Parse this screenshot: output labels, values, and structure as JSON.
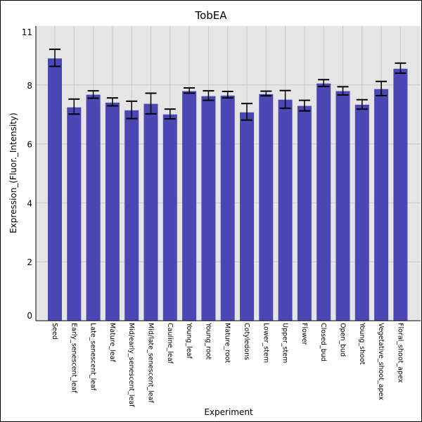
{
  "chart_data": {
    "type": "bar",
    "title": "TobEA",
    "xlabel": "Experiment",
    "ylabel": "Expression_(Fluor._Intensity)",
    "ylim": [
      0,
      10
    ],
    "yticks": [
      0,
      2,
      4,
      6,
      8
    ],
    "ytick_top_label": "11",
    "grid": true,
    "bar_color": "#4b47b5",
    "background_color": "#e5e5e5",
    "categories": [
      "Seed",
      "Early_senescent_leaf",
      "Late_senescent_leaf",
      "Mature_leaf",
      "Mid/early_senescent_leaf",
      "Mid/late_senescent_leaf",
      "Cauline_leaf",
      "Young_leaf",
      "Young_root",
      "Mature_root",
      "Cotyledons",
      "Lower_stem",
      "Upper_stem",
      "Flower",
      "Closed_bud",
      "Open_bud",
      "Young_shoot",
      "Vegetative_shoot_apex",
      "Floral_shoot_apex"
    ],
    "values": [
      8.9,
      7.24,
      7.67,
      7.4,
      7.14,
      7.36,
      7.0,
      7.79,
      7.62,
      7.64,
      7.07,
      7.69,
      7.5,
      7.29,
      8.05,
      7.79,
      7.33,
      7.86,
      8.55
    ],
    "err_low": [
      8.63,
      7.01,
      7.55,
      7.29,
      6.86,
      7.02,
      6.85,
      7.72,
      7.48,
      7.56,
      6.81,
      7.63,
      7.21,
      7.12,
      7.95,
      7.66,
      7.18,
      7.64,
      8.4
    ],
    "err_high": [
      9.21,
      7.52,
      7.8,
      7.56,
      7.45,
      7.72,
      7.18,
      7.9,
      7.8,
      7.78,
      7.37,
      7.79,
      7.81,
      7.48,
      8.18,
      7.94,
      7.5,
      8.12,
      8.74
    ]
  }
}
